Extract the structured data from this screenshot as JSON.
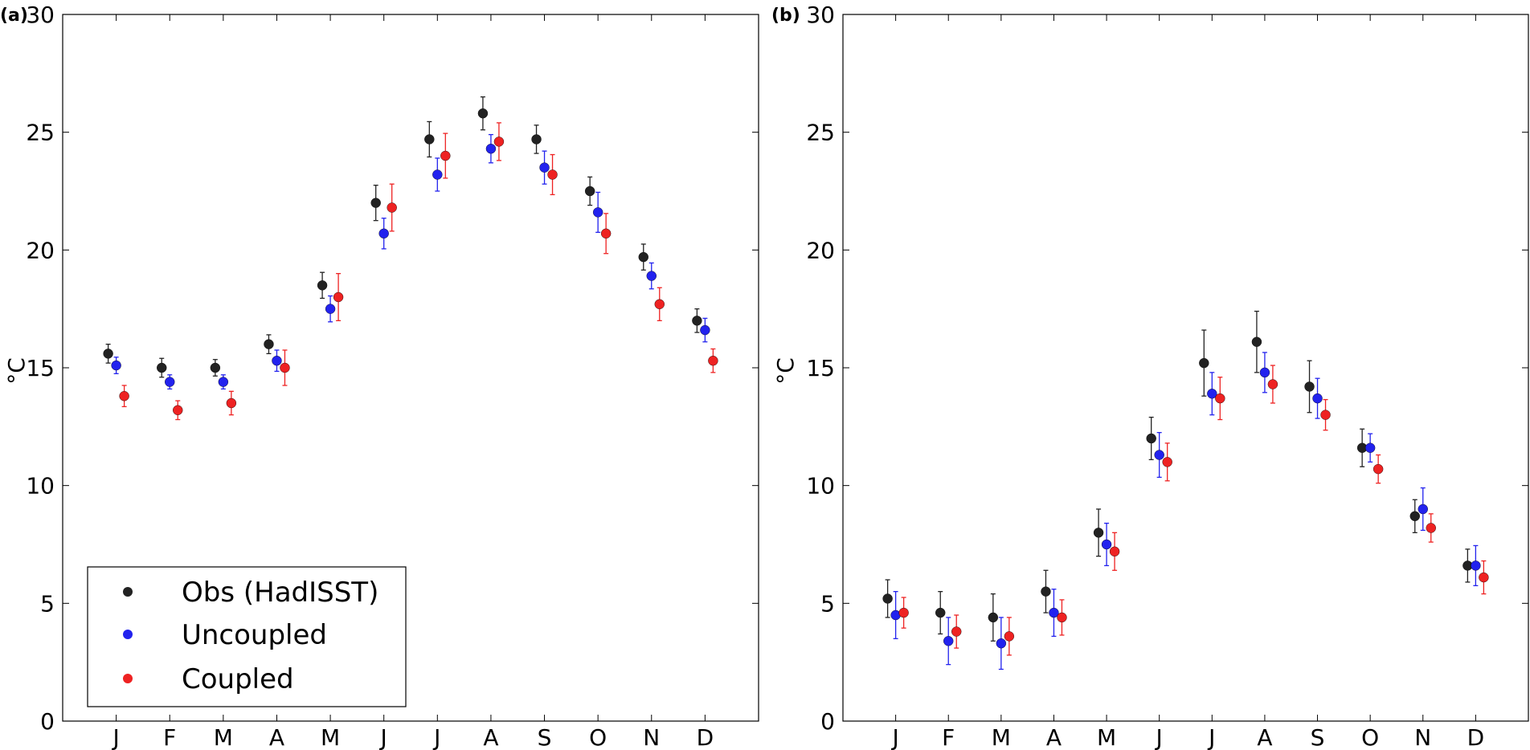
{
  "chart_data": [
    {
      "type": "scatter",
      "panel_label": "(a)",
      "ylabel": "°C",
      "ylim": [
        0,
        30
      ],
      "yticks": [
        0,
        5,
        10,
        15,
        20,
        25,
        30
      ],
      "categories": [
        "J",
        "F",
        "M",
        "A",
        "M",
        "J",
        "J",
        "A",
        "S",
        "O",
        "N",
        "D"
      ],
      "legend": {
        "placement": "lower-left",
        "entries": [
          "Obs (HadISST)",
          "Uncoupled",
          "Coupled"
        ]
      },
      "series": [
        {
          "name": "Obs (HadISST)",
          "color": "#222222",
          "values": [
            15.6,
            15.0,
            15.0,
            16.0,
            18.5,
            22.0,
            24.7,
            25.8,
            24.7,
            22.5,
            19.7,
            17.0
          ],
          "errors": [
            0.4,
            0.4,
            0.35,
            0.4,
            0.55,
            0.75,
            0.75,
            0.7,
            0.6,
            0.6,
            0.55,
            0.5
          ]
        },
        {
          "name": "Uncoupled",
          "color": "#2222ee",
          "values": [
            15.1,
            14.4,
            14.4,
            15.3,
            17.5,
            20.7,
            23.2,
            24.3,
            23.5,
            21.6,
            18.9,
            16.6
          ],
          "errors": [
            0.35,
            0.3,
            0.3,
            0.45,
            0.55,
            0.65,
            0.7,
            0.6,
            0.7,
            0.85,
            0.55,
            0.5
          ]
        },
        {
          "name": "Coupled",
          "color": "#ee2222",
          "values": [
            13.8,
            13.2,
            13.5,
            15.0,
            18.0,
            21.8,
            24.0,
            24.6,
            23.2,
            20.7,
            17.7,
            15.3
          ],
          "errors": [
            0.45,
            0.4,
            0.5,
            0.75,
            1.0,
            1.0,
            0.95,
            0.8,
            0.85,
            0.85,
            0.7,
            0.5
          ]
        }
      ]
    },
    {
      "type": "scatter",
      "panel_label": "(b)",
      "ylabel": "°C",
      "ylim": [
        0,
        30
      ],
      "yticks": [
        0,
        5,
        10,
        15,
        20,
        25,
        30
      ],
      "categories": [
        "J",
        "F",
        "M",
        "A",
        "M",
        "J",
        "J",
        "A",
        "S",
        "O",
        "N",
        "D"
      ],
      "series": [
        {
          "name": "Obs (HadISST)",
          "color": "#222222",
          "values": [
            5.2,
            4.6,
            4.4,
            5.5,
            8.0,
            12.0,
            15.2,
            16.1,
            14.2,
            11.6,
            8.7,
            6.6
          ],
          "errors": [
            0.8,
            0.9,
            1.0,
            0.9,
            1.0,
            0.9,
            1.4,
            1.3,
            1.1,
            0.8,
            0.7,
            0.7
          ]
        },
        {
          "name": "Uncoupled",
          "color": "#2222ee",
          "values": [
            4.5,
            3.4,
            3.3,
            4.6,
            7.5,
            11.3,
            13.9,
            14.8,
            13.7,
            11.6,
            9.0,
            6.6
          ],
          "errors": [
            1.0,
            1.0,
            1.1,
            1.0,
            0.9,
            0.95,
            0.9,
            0.85,
            0.85,
            0.6,
            0.9,
            0.85
          ]
        },
        {
          "name": "Coupled",
          "color": "#ee2222",
          "values": [
            4.6,
            3.8,
            3.6,
            4.4,
            7.2,
            11.0,
            13.7,
            14.3,
            13.0,
            10.7,
            8.2,
            6.1
          ],
          "errors": [
            0.65,
            0.7,
            0.8,
            0.75,
            0.8,
            0.8,
            0.9,
            0.8,
            0.65,
            0.6,
            0.6,
            0.7
          ]
        }
      ]
    }
  ]
}
